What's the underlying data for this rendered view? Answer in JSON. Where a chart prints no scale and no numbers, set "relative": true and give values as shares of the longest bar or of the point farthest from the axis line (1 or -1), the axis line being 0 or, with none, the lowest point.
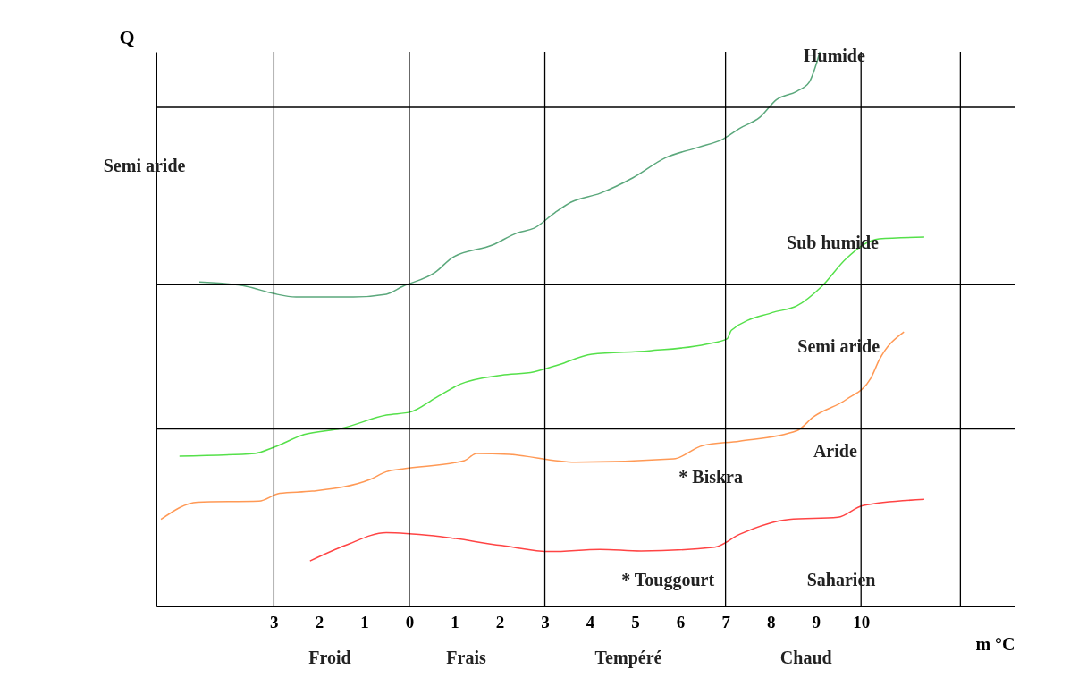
{
  "chart_data": {
    "type": "line",
    "relative": true,
    "xlabel": "m °C",
    "ylabel": "Q",
    "xlim": [
      -5.6,
      13.4
    ],
    "xticks": [
      {
        "value": -3,
        "label": "3"
      },
      {
        "value": -2,
        "label": "2"
      },
      {
        "value": -1,
        "label": "1"
      },
      0,
      1,
      2,
      3,
      4,
      5,
      6,
      7,
      8,
      9,
      10
    ],
    "series": [
      {
        "color": "#5ba87c",
        "x": [
          -4.65,
          -3.6,
          -3.0,
          -2.51,
          -1.24,
          -0.51,
          -0.15,
          0.58,
          0.95,
          1.85,
          2.4,
          2.76,
          3.22,
          3.58,
          4.22,
          4.95,
          5.67,
          6.4,
          6.95,
          7.31,
          7.76,
          8.13,
          8.58,
          8.85,
          9.09
        ],
        "values": [
          0.585,
          0.577,
          0.564,
          0.558,
          0.558,
          0.563,
          0.577,
          0.603,
          0.629,
          0.652,
          0.674,
          0.682,
          0.71,
          0.729,
          0.745,
          0.773,
          0.809,
          0.828,
          0.843,
          0.862,
          0.882,
          0.914,
          0.929,
          0.945,
          1.0
        ]
      },
      {
        "color": "#55e04a",
        "x": [
          -5.09,
          -3.42,
          -3.0,
          -2.33,
          -1.51,
          -0.51,
          0.04,
          0.58,
          1.13,
          2.04,
          2.76,
          3.31,
          4.04,
          5.31,
          6.58,
          7.04,
          7.13,
          8.04,
          8.58,
          9.13,
          9.67,
          10.4,
          11.4
        ],
        "values": [
          0.271,
          0.276,
          0.287,
          0.31,
          0.321,
          0.345,
          0.351,
          0.376,
          0.401,
          0.417,
          0.423,
          0.436,
          0.455,
          0.461,
          0.473,
          0.483,
          0.498,
          0.53,
          0.542,
          0.577,
          0.627,
          0.663,
          0.666
        ]
      },
      {
        "color": "#ff9955",
        "x": [
          -5.5,
          -4.69,
          -3.33,
          -2.87,
          -2.15,
          -0.87,
          -0.51,
          -0.15,
          1.22,
          1.49,
          2.22,
          3.67,
          5.85,
          6.49,
          7.31,
          8.58,
          8.95,
          9.67,
          10.22,
          10.4,
          10.95
        ],
        "values": [
          0.157,
          0.188,
          0.19,
          0.204,
          0.208,
          0.229,
          0.243,
          0.248,
          0.263,
          0.276,
          0.274,
          0.26,
          0.266,
          0.29,
          0.298,
          0.317,
          0.342,
          0.373,
          0.412,
          0.444,
          0.495
        ]
      },
      {
        "color": "#ff4444",
        "x": [
          -2.2,
          -1.42,
          -0.51,
          0.58,
          2.04,
          3.13,
          4.22,
          5.13,
          6.76,
          7.31,
          8.4,
          9.49,
          10.04,
          11.4
        ],
        "values": [
          0.082,
          0.11,
          0.133,
          0.127,
          0.11,
          0.099,
          0.103,
          0.1,
          0.107,
          0.13,
          0.157,
          0.161,
          0.182,
          0.193
        ]
      }
    ],
    "ref_lines": [
      {
        "axis": "y",
        "value": 0.9
      },
      {
        "axis": "y",
        "value": 0.58
      },
      {
        "axis": "y",
        "value": 0.32
      },
      {
        "axis": "x",
        "value": -3
      },
      {
        "axis": "x",
        "value": 0
      },
      {
        "axis": "x",
        "value": 3
      },
      {
        "axis": "x",
        "value": 7
      },
      {
        "axis": "x",
        "value": 10
      },
      {
        "axis": "x",
        "value": 12.2
      }
    ],
    "annotations": [
      "Semi aride",
      "Humide",
      "Sub humide",
      "Semi aride",
      "Aride",
      "* Biskra",
      "* Touggourt",
      "Saharien",
      "Froid",
      "Frais",
      "Tempéré",
      "Chaud"
    ]
  }
}
